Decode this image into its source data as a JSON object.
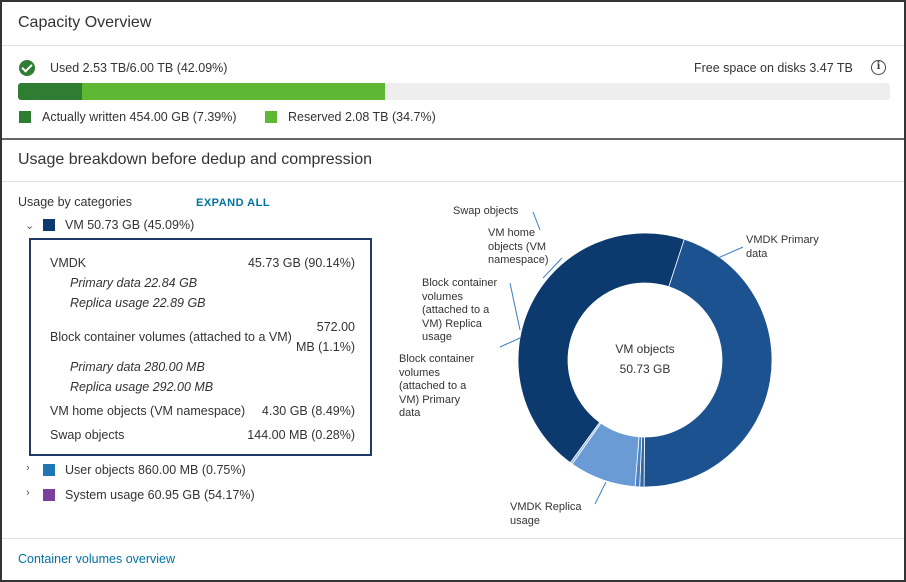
{
  "capacity": {
    "title": "Capacity Overview",
    "used_label": "Used 2.53 TB/6.00 TB (42.09%)",
    "free_label": "Free space on disks 3.47 TB",
    "info_icon": "info-icon",
    "status_icon": "check-circle-icon",
    "bar": {
      "actually_written_fraction": 0.0739,
      "reserved_fraction": 0.347,
      "colors": {
        "actually_written": "#2e7d32",
        "reserved": "#5fb833",
        "track": "#eeeeee"
      }
    },
    "legend": {
      "actually_written": "Actually written 454.00 GB (7.39%)",
      "reserved": "Reserved 2.08 TB (34.7%)"
    }
  },
  "breakdown": {
    "title": "Usage breakdown before dedup and compression",
    "categories_label": "Usage by categories",
    "expand_all": "EXPAND ALL",
    "vm": {
      "label": "VM 50.73 GB (45.09%)",
      "color": "#0d3a6e",
      "vmdk_label": "VMDK",
      "vmdk_value": "45.73 GB (90.14%)",
      "vmdk_primary": "Primary data 22.84 GB",
      "vmdk_replica": "Replica usage 22.89 GB",
      "block_label": "Block container volumes (attached to a VM)",
      "block_value_1": "572.00",
      "block_value_2": "MB (1.1%)",
      "block_primary": "Primary data 280.00 MB",
      "block_replica": "Replica usage 292.00 MB",
      "home_label": "VM home objects (VM namespace)",
      "home_value": "4.30 GB (8.49%)",
      "swap_label": "Swap objects",
      "swap_value": "144.00 MB (0.28%)"
    },
    "user_objects": {
      "label": "User objects 860.00 MB (0.75%)",
      "color": "#1f77b4"
    },
    "system_usage": {
      "label": "System usage 60.95 GB (54.17%)",
      "color": "#7b3f9e"
    }
  },
  "chart_data": {
    "type": "pie",
    "center_title": "VM objects",
    "center_value": "50.73 GB",
    "slices": [
      {
        "label": "VMDK Primary data",
        "value": 22.84,
        "color": "#0d3a6e"
      },
      {
        "label": "VMDK Replica usage",
        "value": 22.89,
        "color": "#1d5290"
      },
      {
        "label": "Block container volumes (attached to a VM) Primary data",
        "value": 0.28,
        "color": "#2e67a8"
      },
      {
        "label": "Block container volumes (attached to a VM) Replica usage",
        "value": 0.292,
        "color": "#4a82c0"
      },
      {
        "label": "VM home objects (VM namespace)",
        "value": 4.3,
        "color": "#6a9bd4"
      },
      {
        "label": "Swap objects",
        "value": 0.144,
        "color": "#8db5e2"
      }
    ]
  },
  "footer": {
    "link": "Container volumes overview"
  }
}
